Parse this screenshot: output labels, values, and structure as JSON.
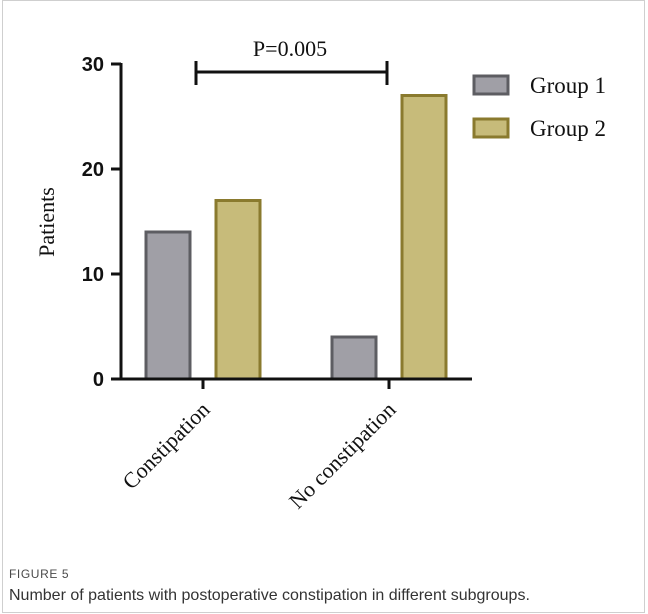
{
  "figure": {
    "label": "FIGURE 5",
    "caption": "Number of patients with postoperative constipation in different subgroups."
  },
  "chart_data": {
    "type": "bar",
    "categories": [
      "Constipation",
      "No constipation"
    ],
    "series": [
      {
        "name": "Group 1",
        "values": [
          14,
          4
        ],
        "fill": "#a09fa6",
        "stroke": "#5d5d62"
      },
      {
        "name": "Group 2",
        "values": [
          17,
          27
        ],
        "fill": "#c7bb7a",
        "stroke": "#8a7a2e"
      }
    ],
    "ylabel": "Patients",
    "ylim": [
      0,
      30
    ],
    "yticks": [
      "0",
      "10",
      "20",
      "30"
    ],
    "legend_position": "top-right",
    "annotation": {
      "text": "P=0.005",
      "between": [
        "Group 1",
        "Group 2"
      ]
    }
  }
}
